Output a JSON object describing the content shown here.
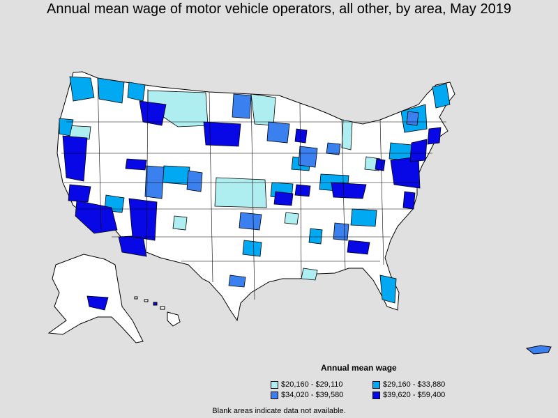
{
  "title": "Annual mean wage of motor vehicle operators, all other, by area, May 2019",
  "legend": {
    "title": "Annual mean wage",
    "items": [
      {
        "label": "$20,160 - $29,110",
        "color": "#aeeef0"
      },
      {
        "label": "$29,160 - $33,880",
        "color": "#00a9f2"
      },
      {
        "label": "$34,020 - $39,580",
        "color": "#3a80ee"
      },
      {
        "label": "$39,620 - $59,400",
        "color": "#0808e6"
      }
    ]
  },
  "note": "Blank areas indicate data not available.",
  "colors": {
    "background": "#e0e0e0",
    "no_data": "#ffffff",
    "outline": "#000000"
  }
}
